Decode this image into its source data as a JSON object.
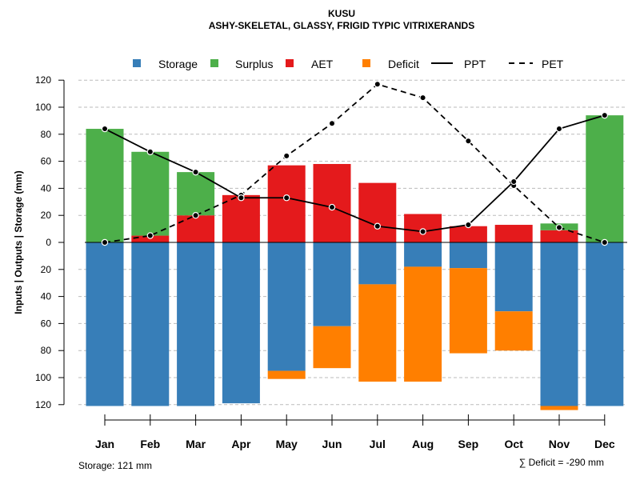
{
  "chart_data": {
    "type": "bar",
    "title": "KUSU",
    "subtitle": "ASHY-SKELETAL, GLASSY, FRIGID TYPIC VITRIXERANDS",
    "ylabel": "Inputs | Outputs | Storage    (mm)",
    "categories": [
      "Jan",
      "Feb",
      "Mar",
      "Apr",
      "May",
      "Jun",
      "Jul",
      "Aug",
      "Sep",
      "Oct",
      "Nov",
      "Dec"
    ],
    "ylim": [
      -120,
      120
    ],
    "yticks": [
      120,
      100,
      80,
      60,
      40,
      20,
      0,
      20,
      40,
      60,
      80,
      100,
      120
    ],
    "ytick_values": [
      120,
      100,
      80,
      60,
      40,
      20,
      0,
      -20,
      -40,
      -60,
      -80,
      -100,
      -120
    ],
    "legend": {
      "storage": "Storage",
      "surplus": "Surplus",
      "aet": "AET",
      "deficit": "Deficit",
      "ppt": "PPT",
      "pet": "PET"
    },
    "colors": {
      "storage": "#377eb8",
      "surplus": "#4daf4a",
      "aet": "#e41a1c",
      "deficit": "#ff7f00",
      "grid": "#bbbbbb"
    },
    "series": [
      {
        "name": "AET",
        "values": [
          0,
          5,
          20,
          35,
          57,
          58,
          44,
          21,
          12,
          13,
          9,
          0
        ]
      },
      {
        "name": "Surplus",
        "values": [
          84,
          62,
          32,
          0,
          0,
          0,
          0,
          0,
          0,
          0,
          5,
          94
        ]
      },
      {
        "name": "Storage",
        "values": [
          121,
          121,
          121,
          119,
          95,
          62,
          31,
          18,
          19,
          51,
          121,
          121
        ]
      },
      {
        "name": "Deficit",
        "values": [
          0,
          0,
          0,
          0,
          6,
          31,
          72,
          85,
          63,
          29,
          3,
          0
        ]
      },
      {
        "name": "PPT",
        "values": [
          84,
          67,
          52,
          33,
          33,
          26,
          12,
          8,
          13,
          45,
          84,
          94
        ]
      },
      {
        "name": "PET",
        "values": [
          0,
          5,
          20,
          35,
          64,
          88,
          117,
          107,
          75,
          42,
          11,
          0
        ]
      }
    ],
    "storage_note": "Storage: 121 mm",
    "deficit_note": "∑ Deficit = -290 mm"
  }
}
